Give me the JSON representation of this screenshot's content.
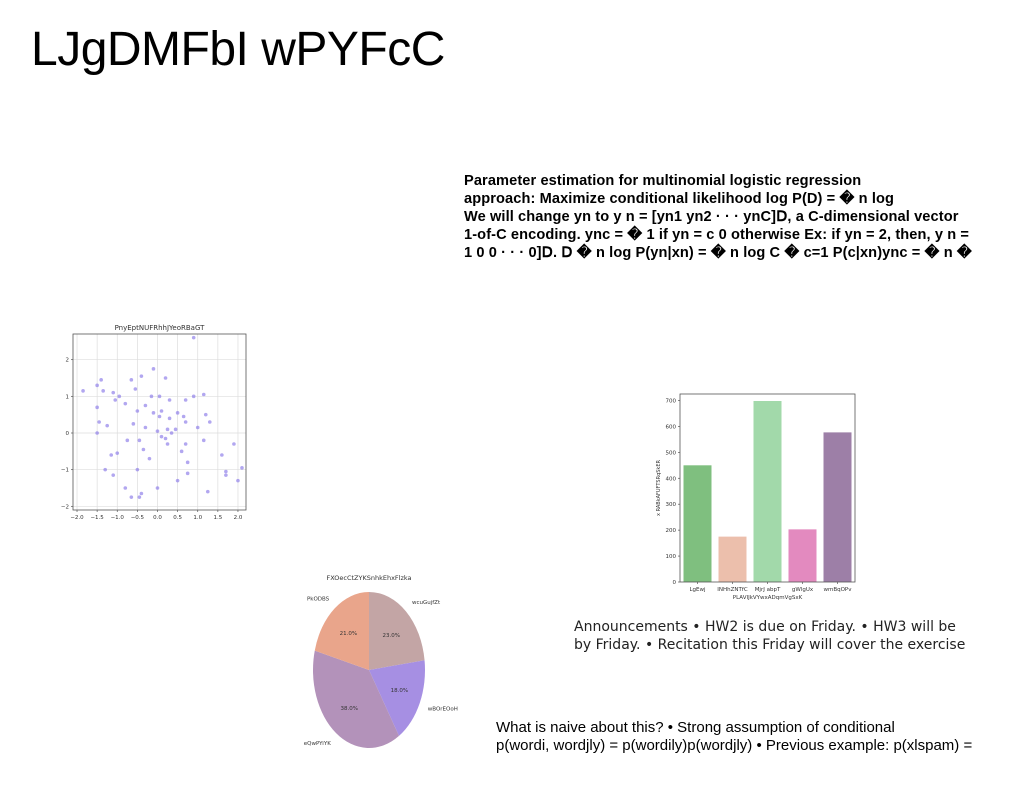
{
  "page": {
    "title": "LJgDMFbI wPYFcC"
  },
  "slide_text": {
    "lines": [
      "Parameter estimation for multinomial logistic regression",
      "approach: Maximize conditional likelihood log P(D) = � n log",
      "We will change yn to y n = [yn1 yn2 · · · ynC]𝖣, a C-dimensional vector",
      "1-of-C encoding. ync = � 1 if yn = c 0 otherwise Ex: if yn = 2, then, y n =",
      "1 0 0 · · · 0]𝖣. 𝖣 � n log P(yn|xn) = � n log C � c=1 P(c|xn)ync = � n �"
    ]
  },
  "announcements": {
    "lines": [
      "Announcements • HW2 is due on Friday. • HW3 will be",
      "by Friday. • Recitation this Friday will cover the exercise"
    ]
  },
  "naive": {
    "lines": [
      "What is naive about this? • Strong assumption of conditional",
      "p(wordi, wordjly) = p(wordily)p(wordjly) • Previous example: p(xlspam) ="
    ]
  },
  "chart_data": [
    {
      "type": "scatter",
      "title": "PnyEptNUFRhhJYeoRBaGT",
      "xlim": [
        -2.1,
        2.2
      ],
      "ylim": [
        -2.1,
        2.7
      ],
      "xticks": [
        -2.0,
        -1.5,
        -1.0,
        -0.5,
        0.0,
        0.5,
        1.0,
        1.5,
        2.0
      ],
      "yticks": [
        -2,
        -1,
        0,
        1,
        2
      ],
      "xtick_labels": [
        "−2.0",
        "−1.5",
        "−1.0",
        "−0.5",
        "0.0",
        "0.5",
        "1.0",
        "1.5",
        "2.0"
      ],
      "ytick_labels": [
        "−2",
        "−1",
        "0",
        "1",
        "2"
      ],
      "grid": true,
      "color": "#8878e8",
      "points": [
        [
          0.9,
          2.6
        ],
        [
          -0.1,
          1.75
        ],
        [
          -0.4,
          1.55
        ],
        [
          0.2,
          1.5
        ],
        [
          -1.4,
          1.45
        ],
        [
          -0.65,
          1.45
        ],
        [
          -1.5,
          1.3
        ],
        [
          -1.35,
          1.15
        ],
        [
          -1.1,
          1.1
        ],
        [
          -0.55,
          1.2
        ],
        [
          -0.15,
          1.0
        ],
        [
          0.05,
          1.0
        ],
        [
          0.7,
          0.9
        ],
        [
          0.9,
          1.0
        ],
        [
          1.15,
          1.05
        ],
        [
          -1.85,
          1.15
        ],
        [
          -1.05,
          0.9
        ],
        [
          -0.95,
          1.0
        ],
        [
          -0.8,
          0.8
        ],
        [
          -1.5,
          0.7
        ],
        [
          -0.3,
          0.75
        ],
        [
          0.3,
          0.9
        ],
        [
          -0.5,
          0.6
        ],
        [
          -0.1,
          0.55
        ],
        [
          0.1,
          0.6
        ],
        [
          0.5,
          0.55
        ],
        [
          0.65,
          0.45
        ],
        [
          1.2,
          0.5
        ],
        [
          -1.45,
          0.3
        ],
        [
          -1.25,
          0.2
        ],
        [
          0.05,
          0.45
        ],
        [
          0.3,
          0.4
        ],
        [
          1.3,
          0.3
        ],
        [
          -0.6,
          0.25
        ],
        [
          -1.5,
          0.0
        ],
        [
          -0.3,
          0.15
        ],
        [
          0.0,
          0.05
        ],
        [
          0.25,
          0.1
        ],
        [
          0.35,
          0.0
        ],
        [
          0.45,
          0.1
        ],
        [
          0.7,
          0.3
        ],
        [
          1.0,
          0.15
        ],
        [
          0.1,
          -0.1
        ],
        [
          0.2,
          -0.15
        ],
        [
          -0.45,
          -0.2
        ],
        [
          -0.75,
          -0.2
        ],
        [
          0.25,
          -0.3
        ],
        [
          1.15,
          -0.2
        ],
        [
          0.6,
          -0.5
        ],
        [
          -0.35,
          -0.45
        ],
        [
          -1.0,
          -0.55
        ],
        [
          -1.15,
          -0.6
        ],
        [
          0.7,
          -0.3
        ],
        [
          1.6,
          -0.6
        ],
        [
          -0.2,
          -0.7
        ],
        [
          0.75,
          -0.8
        ],
        [
          1.9,
          -0.3
        ],
        [
          -1.3,
          -1.0
        ],
        [
          -0.5,
          -1.0
        ],
        [
          2.1,
          -0.95
        ],
        [
          1.7,
          -1.05
        ],
        [
          1.7,
          -1.15
        ],
        [
          0.5,
          -1.3
        ],
        [
          0.75,
          -1.1
        ],
        [
          -0.8,
          -1.5
        ],
        [
          0.0,
          -1.5
        ],
        [
          1.25,
          -1.6
        ],
        [
          -0.4,
          -1.65
        ],
        [
          -0.45,
          -1.75
        ],
        [
          -0.65,
          -1.75
        ],
        [
          -1.1,
          -1.15
        ],
        [
          2.0,
          -1.3
        ]
      ]
    },
    {
      "type": "bar",
      "title": "",
      "categories": [
        "LgEwj",
        "INHhZNTfC",
        "MjrJ abpT",
        "gWlgUx",
        "wmBqOPv"
      ],
      "values": [
        450,
        175,
        698,
        203,
        577
      ],
      "colors": [
        "#7fbf7f",
        "#ecbfac",
        "#a2d9aa",
        "#e38abf",
        "#9d7fa7"
      ],
      "xlabel": "PLAVIJkVYwxADqmVgSxK",
      "ylabel": "x RABkAFUFTSRqSkER",
      "ylim": [
        0,
        725
      ],
      "yticks": [
        0,
        100,
        200,
        300,
        400,
        500,
        600,
        700
      ]
    },
    {
      "type": "pie",
      "title": "FXOecCtZYKSnhkEhxFlzka",
      "slices": [
        {
          "label": "wcuGujfZt",
          "value": 23.0,
          "pct_label": "23.0%",
          "color": "#c3a5a5"
        },
        {
          "label": "wBOrEOoH",
          "value": 18.0,
          "pct_label": "18.0%",
          "color": "#a68fe3"
        },
        {
          "label": "eQwPYiYK",
          "value": 38.0,
          "pct_label": "38.0%",
          "color": "#b392ba"
        },
        {
          "label": "PkODBS",
          "value": 21.0,
          "pct_label": "21.0%",
          "color": "#e9a58b"
        }
      ]
    }
  ]
}
